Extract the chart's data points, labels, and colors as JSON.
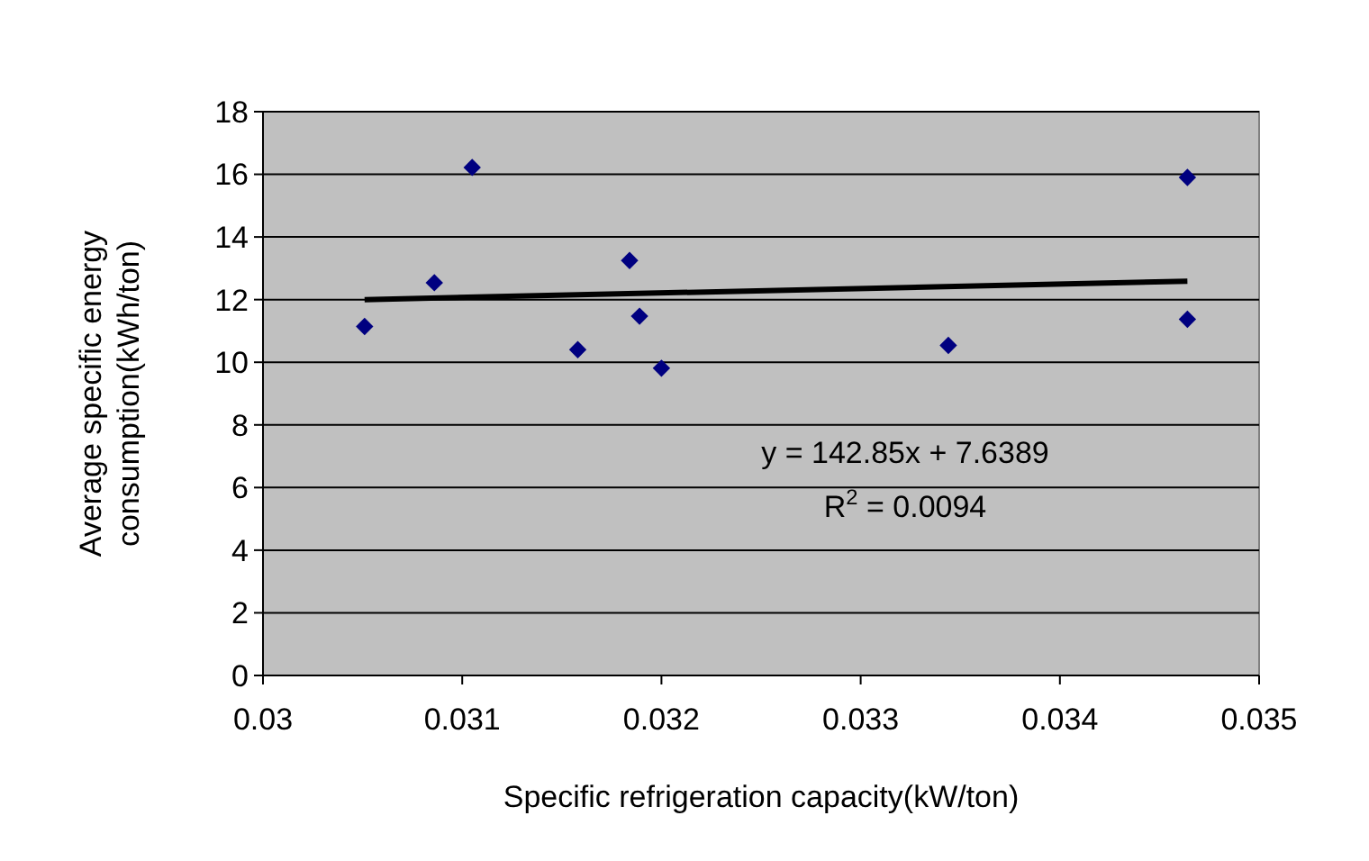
{
  "chart_data": {
    "type": "scatter",
    "xlabel": "Specific refrigeration capacity(kW/ton)",
    "ylabel": "Average specific energy consumption(kWh/ton)",
    "xlim": [
      0.03,
      0.035
    ],
    "xticks": [
      0.03,
      0.031,
      0.032,
      0.033,
      0.034,
      0.035
    ],
    "ylim": [
      0,
      18
    ],
    "yticks": [
      0,
      2,
      4,
      6,
      8,
      10,
      12,
      14,
      16,
      18
    ],
    "grid": "y",
    "series": [
      {
        "color": "#000080",
        "marker": "diamond",
        "x": [
          0.03051,
          0.03086,
          0.03105,
          0.03158,
          0.03184,
          0.03189,
          0.032,
          0.03344,
          0.03464,
          0.03464
        ],
        "values": [
          11.14,
          12.54,
          16.22,
          10.4,
          13.25,
          11.47,
          9.81,
          10.54,
          15.9,
          11.37
        ]
      },
      {
        "type": "line",
        "color": "#000000",
        "marker": "none",
        "x": [
          0.03051,
          0.03464
        ],
        "values": [
          12.0,
          12.59
        ]
      }
    ],
    "annotations": [
      "y = 142.85x + 7.6389",
      "R$^{2}$ = 0.0094"
    ]
  }
}
